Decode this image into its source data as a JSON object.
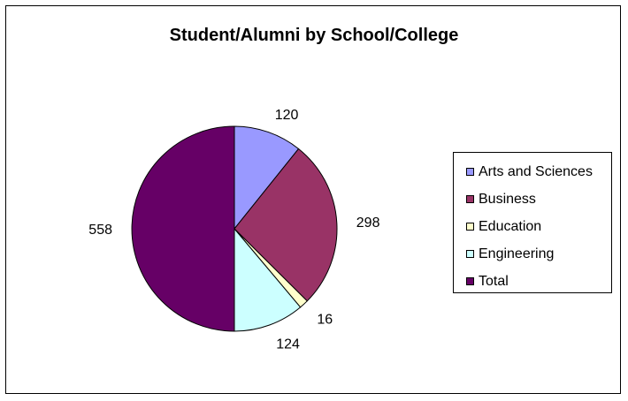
{
  "chart_data": {
    "type": "pie",
    "title": "Student/Alumni by School/College",
    "categories": [
      "Arts and Sciences",
      "Business",
      "Education",
      "Engineering",
      "Total"
    ],
    "values": [
      120,
      298,
      16,
      124,
      558
    ],
    "data_labels": [
      "120",
      "298",
      "16",
      "124",
      "558"
    ],
    "colors": [
      "#9999ff",
      "#993366",
      "#ffffcc",
      "#ccffff",
      "#660066"
    ],
    "legend": "right"
  }
}
